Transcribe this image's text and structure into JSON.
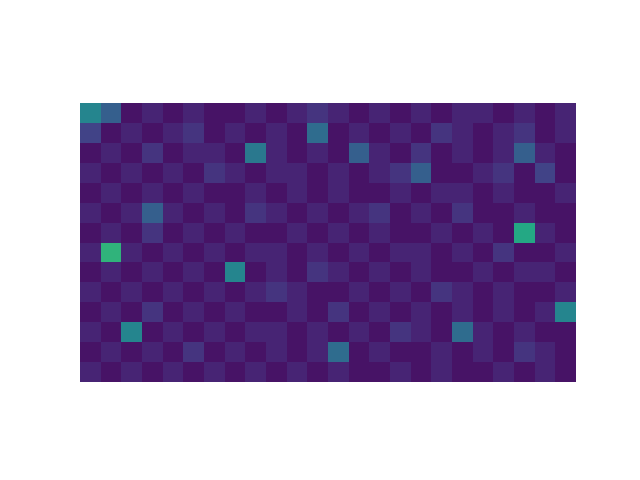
{
  "chart_data": {
    "type": "heatmap",
    "color": "Viridis",
    "tick_labels": false,
    "zlim": [
      0,
      1
    ],
    "cells": [
      [
        0.45,
        0.3,
        0.05,
        0.1,
        0.05,
        0.1,
        0.05,
        0.05,
        0.1,
        0.05,
        0.1,
        0.15,
        0.1,
        0.05,
        0.1,
        0.05,
        0.1,
        0.05,
        0.1,
        0.1,
        0.05,
        0.1,
        0.05,
        0.1
      ],
      [
        0.2,
        0.05,
        0.1,
        0.05,
        0.1,
        0.15,
        0.05,
        0.1,
        0.05,
        0.1,
        0.05,
        0.35,
        0.05,
        0.1,
        0.05,
        0.1,
        0.05,
        0.15,
        0.1,
        0.05,
        0.1,
        0.15,
        0.05,
        0.1
      ],
      [
        0.05,
        0.1,
        0.05,
        0.15,
        0.05,
        0.1,
        0.1,
        0.05,
        0.4,
        0.1,
        0.05,
        0.1,
        0.05,
        0.3,
        0.1,
        0.05,
        0.15,
        0.05,
        0.1,
        0.05,
        0.1,
        0.3,
        0.1,
        0.05
      ],
      [
        0.1,
        0.05,
        0.1,
        0.05,
        0.1,
        0.05,
        0.15,
        0.1,
        0.05,
        0.1,
        0.1,
        0.05,
        0.1,
        0.05,
        0.1,
        0.15,
        0.3,
        0.05,
        0.05,
        0.1,
        0.15,
        0.05,
        0.2,
        0.05
      ],
      [
        0.05,
        0.1,
        0.05,
        0.1,
        0.05,
        0.1,
        0.05,
        0.05,
        0.1,
        0.05,
        0.1,
        0.05,
        0.1,
        0.05,
        0.05,
        0.1,
        0.05,
        0.1,
        0.1,
        0.05,
        0.1,
        0.05,
        0.05,
        0.1
      ],
      [
        0.1,
        0.05,
        0.1,
        0.3,
        0.1,
        0.05,
        0.1,
        0.05,
        0.15,
        0.1,
        0.05,
        0.1,
        0.05,
        0.1,
        0.15,
        0.05,
        0.1,
        0.05,
        0.15,
        0.05,
        0.05,
        0.1,
        0.05,
        0.05
      ],
      [
        0.05,
        0.1,
        0.05,
        0.15,
        0.05,
        0.1,
        0.05,
        0.1,
        0.05,
        0.05,
        0.1,
        0.05,
        0.1,
        0.05,
        0.1,
        0.05,
        0.05,
        0.1,
        0.05,
        0.1,
        0.05,
        0.6,
        0.1,
        0.05
      ],
      [
        0.1,
        0.65,
        0.1,
        0.05,
        0.1,
        0.05,
        0.1,
        0.05,
        0.1,
        0.1,
        0.05,
        0.1,
        0.05,
        0.1,
        0.05,
        0.1,
        0.1,
        0.05,
        0.1,
        0.05,
        0.15,
        0.05,
        0.05,
        0.1
      ],
      [
        0.05,
        0.1,
        0.05,
        0.1,
        0.05,
        0.1,
        0.05,
        0.45,
        0.05,
        0.1,
        0.05,
        0.15,
        0.1,
        0.05,
        0.1,
        0.05,
        0.1,
        0.05,
        0.05,
        0.1,
        0.05,
        0.1,
        0.1,
        0.05
      ],
      [
        0.1,
        0.05,
        0.1,
        0.05,
        0.1,
        0.05,
        0.1,
        0.05,
        0.1,
        0.15,
        0.1,
        0.05,
        0.05,
        0.1,
        0.05,
        0.1,
        0.05,
        0.15,
        0.1,
        0.05,
        0.1,
        0.05,
        0.05,
        0.1
      ],
      [
        0.05,
        0.1,
        0.05,
        0.15,
        0.05,
        0.1,
        0.05,
        0.1,
        0.05,
        0.05,
        0.1,
        0.05,
        0.15,
        0.05,
        0.1,
        0.05,
        0.1,
        0.05,
        0.1,
        0.05,
        0.1,
        0.05,
        0.1,
        0.45
      ],
      [
        0.1,
        0.05,
        0.45,
        0.05,
        0.1,
        0.05,
        0.1,
        0.05,
        0.1,
        0.1,
        0.05,
        0.1,
        0.05,
        0.1,
        0.05,
        0.15,
        0.1,
        0.05,
        0.35,
        0.1,
        0.05,
        0.1,
        0.05,
        0.05
      ],
      [
        0.05,
        0.1,
        0.05,
        0.1,
        0.05,
        0.15,
        0.05,
        0.1,
        0.05,
        0.1,
        0.05,
        0.1,
        0.35,
        0.05,
        0.1,
        0.05,
        0.05,
        0.1,
        0.05,
        0.1,
        0.05,
        0.15,
        0.1,
        0.05
      ],
      [
        0.1,
        0.05,
        0.1,
        0.05,
        0.1,
        0.05,
        0.1,
        0.05,
        0.1,
        0.05,
        0.1,
        0.05,
        0.1,
        0.05,
        0.05,
        0.1,
        0.05,
        0.1,
        0.05,
        0.05,
        0.1,
        0.05,
        0.1,
        0.05
      ]
    ]
  }
}
